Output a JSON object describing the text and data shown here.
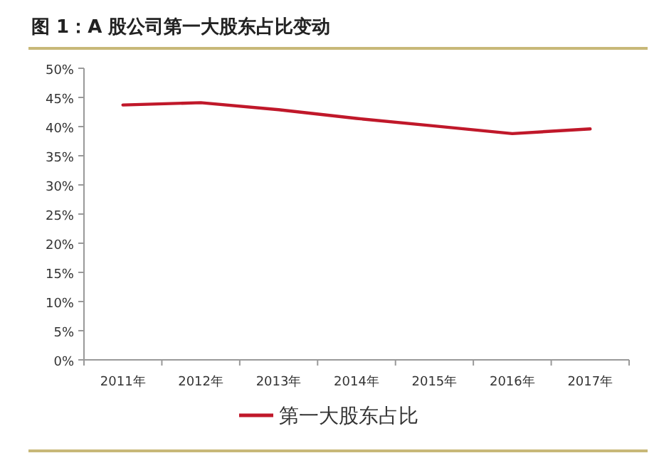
{
  "chart_data": {
    "type": "line",
    "title": "图 1：A 股公司第一大股东占比变动",
    "categories": [
      "2011年",
      "2012年",
      "2013年",
      "2014年",
      "2015年",
      "2016年",
      "2017年"
    ],
    "series": [
      {
        "name": "第一大股东占比",
        "color": "#c0182a",
        "values": [
          43.7,
          44.1,
          42.9,
          41.4,
          40.1,
          38.8,
          39.6
        ]
      }
    ],
    "ylim": [
      0,
      50
    ],
    "yticks": [
      {
        "value": 0,
        "label": "0%"
      },
      {
        "value": 5,
        "label": "5%"
      },
      {
        "value": 10,
        "label": "10%"
      },
      {
        "value": 15,
        "label": "15%"
      },
      {
        "value": 20,
        "label": "20%"
      },
      {
        "value": 25,
        "label": "25%"
      },
      {
        "value": 30,
        "label": "30%"
      },
      {
        "value": 35,
        "label": "35%"
      },
      {
        "value": 40,
        "label": "40%"
      },
      {
        "value": 45,
        "label": "45%"
      },
      {
        "value": 50,
        "label": "50%"
      }
    ],
    "legend": "bottom",
    "marker": "none",
    "line_style": "solid"
  }
}
